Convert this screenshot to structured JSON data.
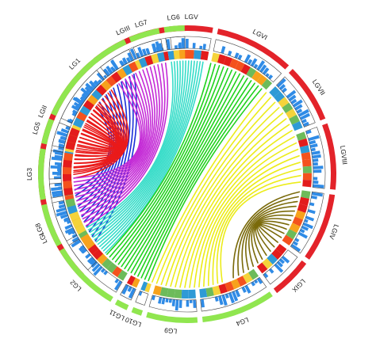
{
  "diagram": {
    "type": "circos",
    "linkage_groups": [
      {
        "label": "LGI",
        "group": "A",
        "start_deg": 226.0,
        "end_deg": 266.0
      },
      {
        "label": "LGII",
        "group": "A",
        "start_deg": 268.0,
        "end_deg": 319.0
      },
      {
        "label": "LGIII",
        "group": "A",
        "start_deg": 321.0,
        "end_deg": 351.0
      },
      {
        "label": "LGV",
        "group": "A",
        "start_deg": 353.0,
        "end_deg": 370.0
      },
      {
        "label": "LGVI",
        "group": "A",
        "start_deg": 372.0,
        "end_deg": 403.0
      },
      {
        "label": "LGVII",
        "group": "A",
        "start_deg": 405.0,
        "end_deg": 428.0
      },
      {
        "label": "LGVIII",
        "group": "A",
        "start_deg": 430.0,
        "end_deg": 456.0
      },
      {
        "label": "LGIV",
        "group": "A",
        "start_deg": 458.0,
        "end_deg": 485.0
      },
      {
        "label": "LGIX",
        "group": "A",
        "start_deg": 487.0,
        "end_deg": 503.0
      },
      {
        "label": "LG4",
        "group": "B",
        "start_deg": 505.0,
        "end_deg": 534.0
      },
      {
        "label": "LG9",
        "group": "B",
        "start_deg": 536.0,
        "end_deg": 556.0
      },
      {
        "label": "LG10",
        "group": "B",
        "start_deg": 558.0,
        "end_deg": 562.0
      },
      {
        "label": "LG11",
        "group": "B",
        "start_deg": 564.0,
        "end_deg": 569.0
      },
      {
        "label": "LG2",
        "group": "B",
        "start_deg": 571.0,
        "end_deg": 599.0
      },
      {
        "label": "LG8",
        "group": "B",
        "start_deg": 601.0,
        "end_deg": 618.0
      },
      {
        "label": "LG3",
        "group": "B",
        "start_deg": 620.0,
        "end_deg": 640.0
      },
      {
        "label": "LG5",
        "group": "B",
        "start_deg": 642.0,
        "end_deg": 652.0
      },
      {
        "label": "LG1",
        "group": "B",
        "start_deg": 654.0,
        "end_deg": 695.0
      },
      {
        "label": "LG7",
        "group": "B",
        "start_deg": 697.0,
        "end_deg": 709.0
      },
      {
        "label": "LG6",
        "group": "B",
        "start_deg": 711.0,
        "end_deg": 719.0
      }
    ],
    "bundles": [
      {
        "name": "blue",
        "color": "#1a2fd8",
        "count": 11,
        "a": [
          234,
          262
        ],
        "b": [
          667,
          692
        ],
        "curve": 0.55
      },
      {
        "name": "red",
        "color": "#ea1a1a",
        "count": 22,
        "a": [
          271,
          318
        ],
        "b": [
          628,
          668
        ],
        "curve": 0.3
      },
      {
        "name": "magenta",
        "color": "#c42bd6",
        "count": 14,
        "a": [
          323,
          349
        ],
        "b": [
          603,
          628
        ],
        "curve": 0.1
      },
      {
        "name": "cyan",
        "color": "#35dcc8",
        "count": 12,
        "a": [
          352,
          368
        ],
        "b": [
          586,
          602
        ],
        "curve": 0.05
      },
      {
        "name": "green",
        "color": "#21d21e",
        "count": 14,
        "a": [
          372,
          401
        ],
        "b": [
          560,
          585
        ],
        "curve": 0.1
      },
      {
        "name": "yellow",
        "color": "#ecec1a",
        "count": 16,
        "a": [
          404,
          454
        ],
        "b": [
          522,
          558
        ],
        "curve": 0.3
      },
      {
        "name": "olive",
        "color": "#7a6a0a",
        "count": 11,
        "a": [
          459,
          484
        ],
        "b": [
          487,
          516
        ],
        "curve": 0.55
      }
    ],
    "colors": {
      "group_a": "#e3232a",
      "group_b": "#90e64f",
      "histogram": "#2f8be6",
      "heat": [
        "#e31c1c",
        "#f4521d",
        "#f7a21c",
        "#6dbb5a",
        "#2e9ad6",
        "#f5d33a"
      ]
    }
  }
}
